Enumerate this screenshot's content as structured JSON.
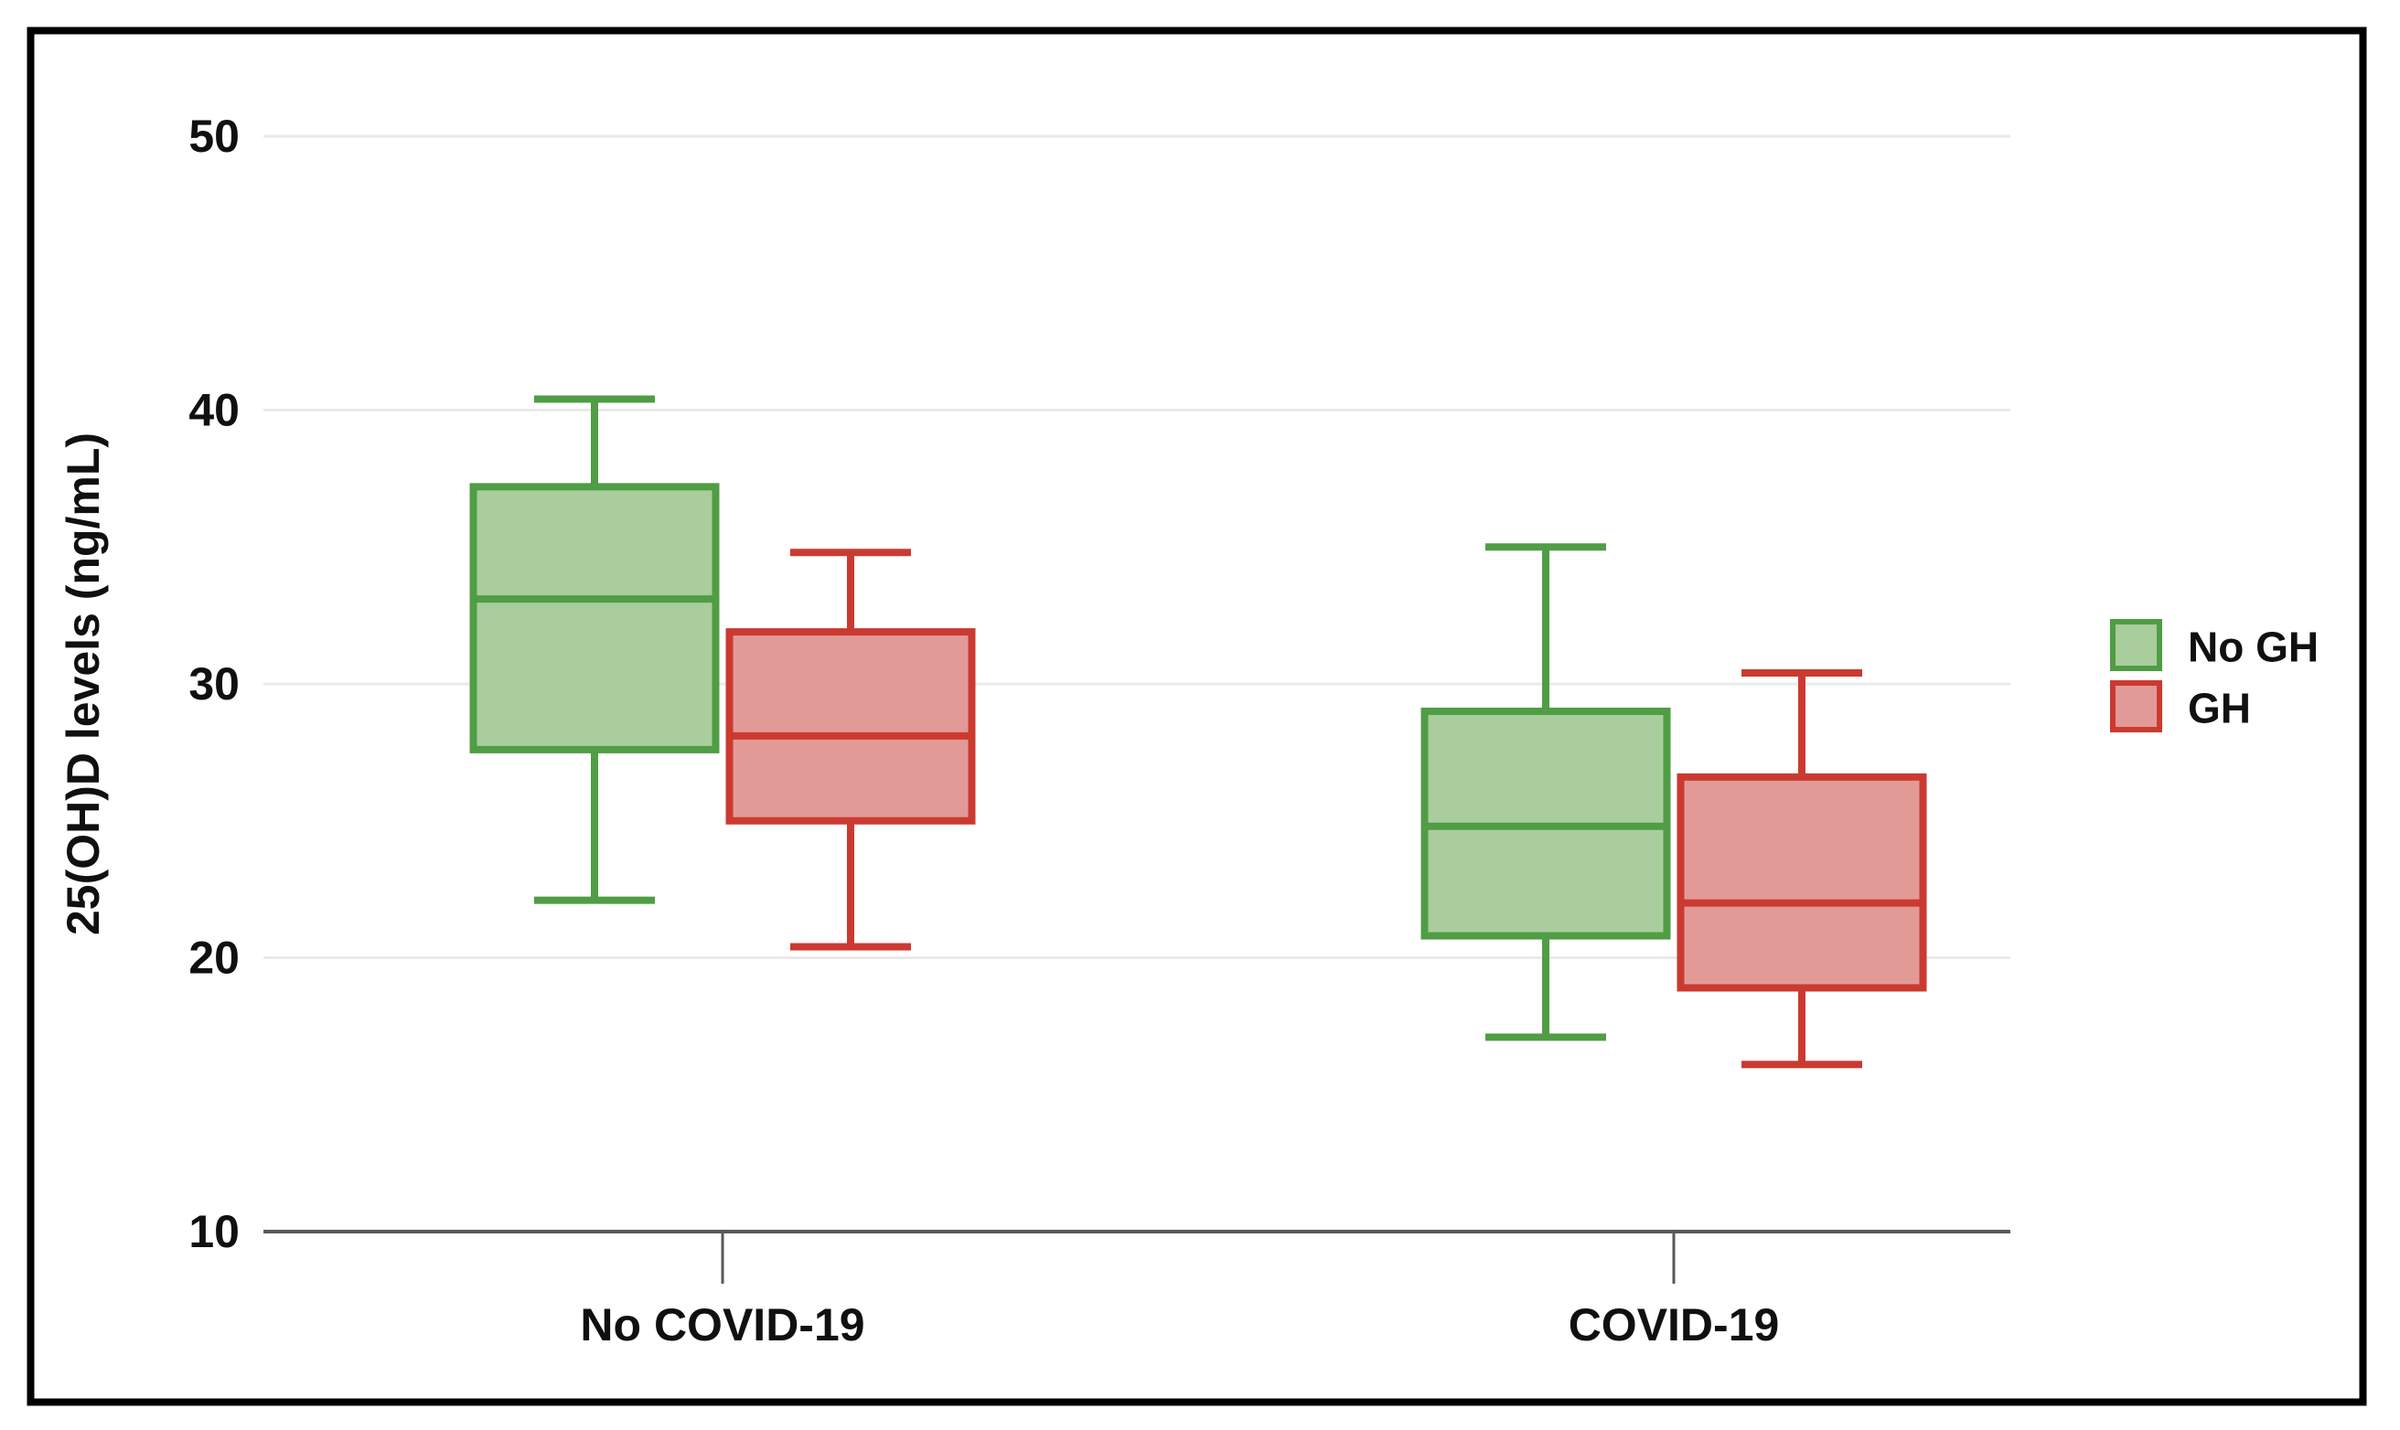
{
  "figure": {
    "background": "#ffffff",
    "border_color": "#000000",
    "border_width": 8
  },
  "chart_data": {
    "type": "boxplot",
    "title": "",
    "xlabel": "",
    "ylabel": "25(OH)D levels (ng/mL)",
    "ylim": [
      10,
      50
    ],
    "yticks": [
      10,
      20,
      30,
      40,
      50
    ],
    "categories": [
      "No COVID-19",
      "COVID-19"
    ],
    "grid": {
      "horizontal_gridlines_at": [
        20,
        30,
        40,
        50
      ],
      "gridline_color": "#eaeaea",
      "baseline_value": 10,
      "baseline_color": "#59595b"
    },
    "legend": {
      "position": "right",
      "entries": [
        {
          "label": "No GH",
          "fill": "#a9cd9d",
          "stroke": "#4f9d44"
        },
        {
          "label": "GH",
          "fill": "#e29a96",
          "stroke": "#cb3a31"
        }
      ]
    },
    "series": [
      {
        "name": "No GH",
        "fill": "#a9cd9d",
        "stroke": "#4f9d44",
        "boxes": [
          {
            "category": "No COVID-19",
            "min": 22.1,
            "q1": 27.6,
            "median": 33.1,
            "q3": 37.2,
            "max": 40.4
          },
          {
            "category": "COVID-19",
            "min": 17.1,
            "q1": 20.8,
            "median": 24.8,
            "q3": 29.0,
            "max": 35.0
          }
        ]
      },
      {
        "name": "GH",
        "fill": "#e29a96",
        "stroke": "#cb3a31",
        "boxes": [
          {
            "category": "No COVID-19",
            "min": 20.4,
            "q1": 25.0,
            "median": 28.1,
            "q3": 31.9,
            "max": 34.8
          },
          {
            "category": "COVID-19",
            "min": 16.1,
            "q1": 18.9,
            "median": 22.0,
            "q3": 26.6,
            "max": 30.4
          }
        ]
      }
    ],
    "text_color": "#101010"
  }
}
